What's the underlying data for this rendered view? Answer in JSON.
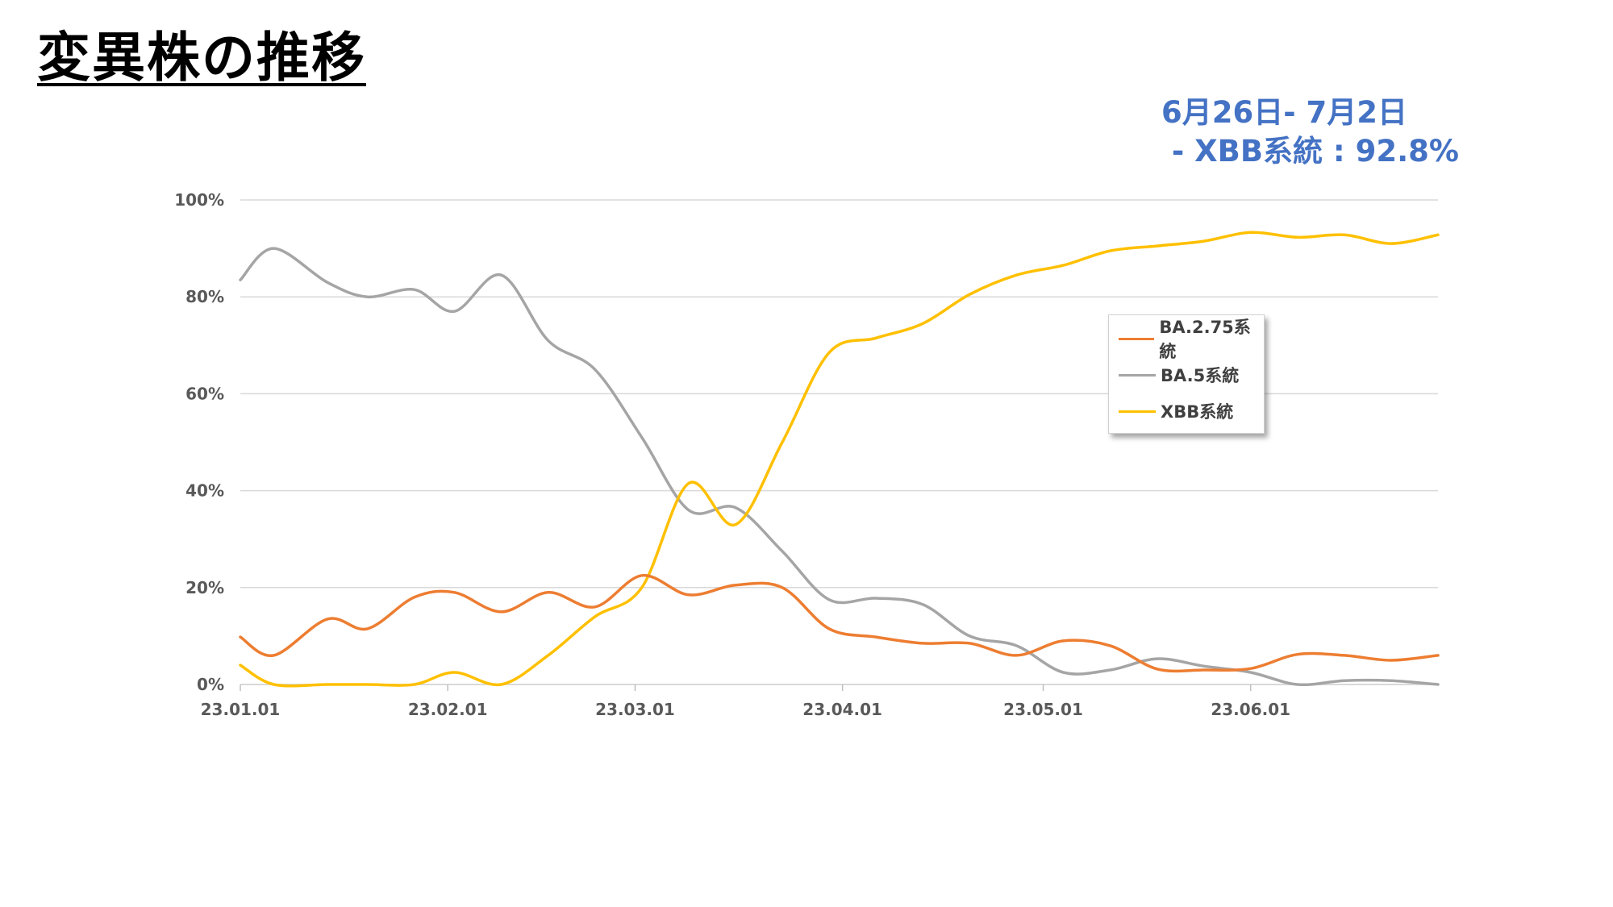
{
  "slide": {
    "title": "変異株の推移",
    "annotation_line1": "6月26日- 7月2日",
    "annotation_line2": " - XBB系統 : 92.8%"
  },
  "colors": {
    "ba275": "#ed7d31",
    "ba5": "#a5a5a5",
    "xbb": "#ffc000",
    "annotation": "#4472c4",
    "gridline": "#d9d9d9",
    "axis_text": "#595959"
  },
  "chart_data": {
    "type": "line",
    "title": "",
    "xlabel": "",
    "ylabel": "",
    "ylim": [
      0,
      100
    ],
    "y_ticks": [
      "0%",
      "20%",
      "40%",
      "60%",
      "80%",
      "100%"
    ],
    "x_tick_labels": [
      "23.01.01",
      "23.02.01",
      "23.03.01",
      "23.04.01",
      "23.05.01",
      "23.06.01"
    ],
    "x_tick_dates": [
      "2023-01-01",
      "2023-02-01",
      "2023-03-01",
      "2023-04-01",
      "2023-05-01",
      "2023-06-01"
    ],
    "x": [
      "2023-01-01",
      "2023-01-06",
      "2023-01-14",
      "2023-01-20",
      "2023-01-27",
      "2023-02-02",
      "2023-02-09",
      "2023-02-16",
      "2023-02-23",
      "2023-03-02",
      "2023-03-09",
      "2023-03-16",
      "2023-03-23",
      "2023-03-30",
      "2023-04-06",
      "2023-04-13",
      "2023-04-20",
      "2023-04-27",
      "2023-05-04",
      "2023-05-11",
      "2023-05-18",
      "2023-05-25",
      "2023-06-01",
      "2023-06-08",
      "2023-06-15",
      "2023-06-22",
      "2023-06-29"
    ],
    "grid": true,
    "legend_position": "right",
    "series": [
      {
        "name": "BA.2.75系統",
        "color": "#ed7d31",
        "values": [
          9.8,
          6.0,
          13.5,
          11.5,
          18.0,
          19.0,
          15.0,
          19.0,
          16.0,
          22.5,
          18.5,
          20.5,
          20.0,
          11.5,
          9.8,
          8.5,
          8.5,
          6.0,
          9.0,
          8.0,
          3.2,
          3.0,
          3.3,
          6.2,
          6.0,
          5.0,
          6.0
        ]
      },
      {
        "name": "BA.5系統",
        "color": "#a5a5a5",
        "values": [
          83.5,
          90.0,
          83.0,
          80.0,
          81.5,
          77.0,
          84.5,
          71.0,
          65.0,
          51.0,
          36.0,
          36.5,
          27.5,
          17.5,
          17.8,
          16.5,
          10.0,
          8.0,
          2.5,
          3.0,
          5.3,
          3.8,
          2.5,
          0.0,
          0.8,
          0.8,
          0.0
        ]
      },
      {
        "name": "XBB系統",
        "color": "#ffc000",
        "values": [
          4.0,
          0.0,
          0.0,
          0.0,
          0.0,
          2.5,
          0.0,
          6.0,
          14.0,
          20.0,
          41.5,
          33.0,
          50.0,
          68.5,
          71.5,
          74.5,
          80.5,
          84.5,
          86.5,
          89.5,
          90.5,
          91.5,
          93.3,
          92.3,
          92.8,
          91.0,
          92.8
        ]
      }
    ]
  }
}
